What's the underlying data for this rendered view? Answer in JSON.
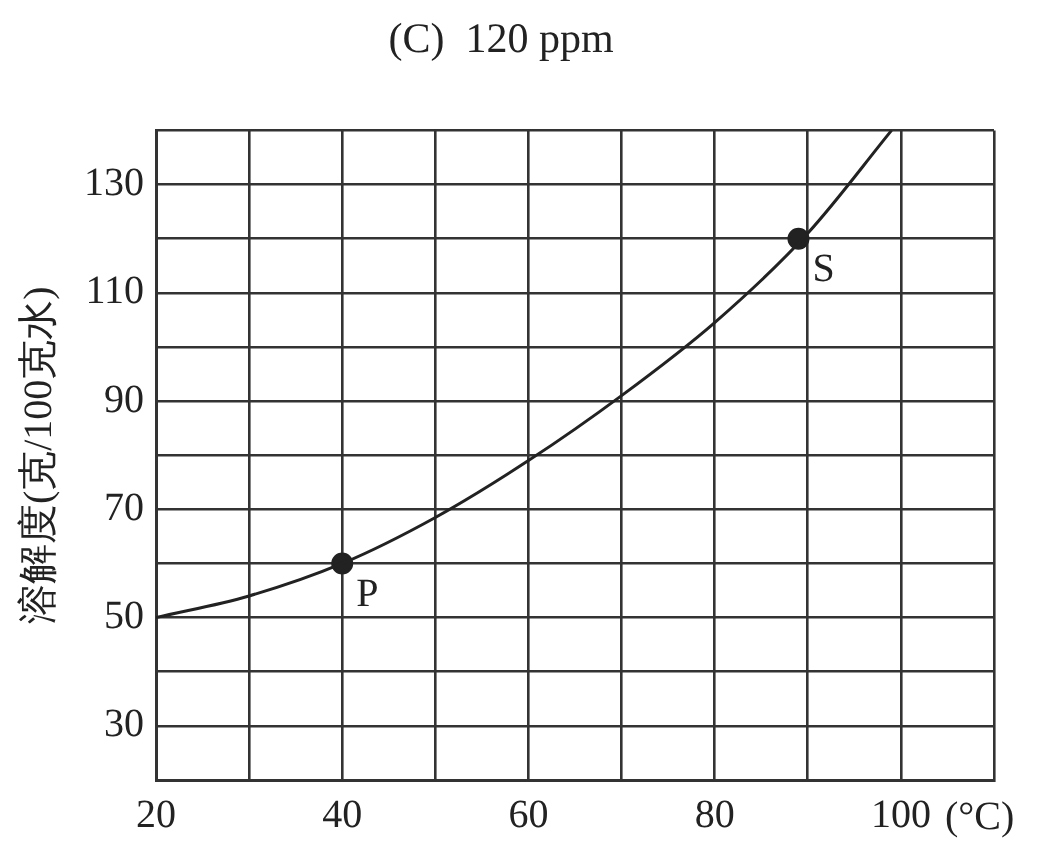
{
  "chart_data": {
    "type": "line",
    "title": "(C)  120 ppm",
    "ylabel": "溶解度(克/100克水)",
    "xlabel": "(°C)",
    "xlim": [
      20,
      110
    ],
    "ylim": [
      20,
      140
    ],
    "xticks": [
      20,
      {
        "value": 30,
        "label": null
      },
      40,
      {
        "value": 50,
        "label": null
      },
      60,
      {
        "value": 70,
        "label": null
      },
      80,
      {
        "value": 90,
        "label": null
      },
      100,
      {
        "value": 110,
        "label": null
      }
    ],
    "yticks": [
      {
        "value": 20,
        "label": null
      },
      30,
      {
        "value": 40,
        "label": null
      },
      50,
      {
        "value": 60,
        "label": null
      },
      70,
      {
        "value": 80,
        "label": null
      },
      90,
      {
        "value": 100,
        "label": null
      },
      110,
      {
        "value": 120,
        "label": null
      },
      130,
      {
        "value": 140,
        "label": null
      }
    ],
    "grid": true,
    "legend": false,
    "series": [
      {
        "color": "#222222",
        "marker": "none",
        "x": [
          20,
          30,
          40,
          50,
          60,
          70,
          80,
          90,
          99
        ],
        "values": [
          50,
          54,
          60,
          68.5,
          79,
          91,
          104.5,
          121,
          140
        ]
      },
      {
        "type": "scatter",
        "color": "#222222",
        "marker": "circle",
        "x": [
          40,
          89
        ],
        "values": [
          60,
          120
        ]
      }
    ],
    "annotations": [
      {
        "text": "P",
        "x": 40,
        "y": 60
      },
      {
        "text": "S",
        "x": 89,
        "y": 120
      }
    ]
  }
}
